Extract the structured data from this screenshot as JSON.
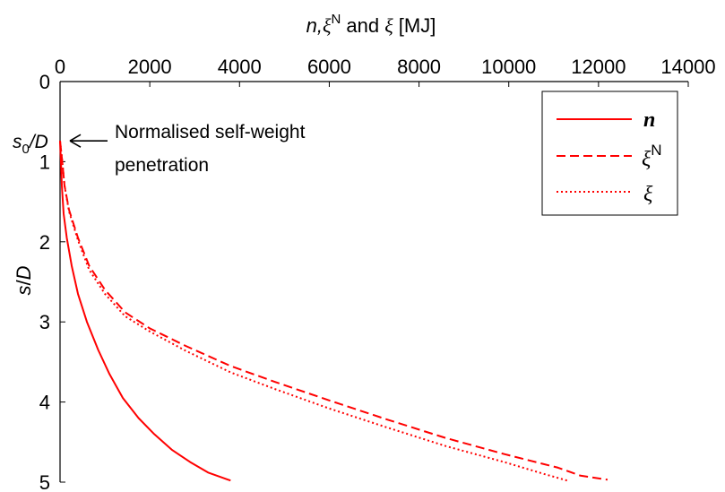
{
  "chart_data": {
    "type": "line",
    "xlabel_parts": {
      "n": "n,",
      "xi": "ξ",
      "sup": "N",
      "and": " and ",
      "xi2": "ξ",
      "unit": " [MJ]"
    },
    "ylabel_parts": {
      "s": "s",
      "slash": "/",
      "D": "D"
    },
    "xlim": [
      0,
      14000
    ],
    "ylim": [
      0,
      5
    ],
    "y_reversed": true,
    "x_axis_position": "top",
    "grid": false,
    "x_ticks": [
      0,
      2000,
      4000,
      6000,
      8000,
      10000,
      12000,
      14000
    ],
    "y_ticks": [
      0,
      1,
      2,
      3,
      4,
      5
    ],
    "legend_position": "top-right",
    "legend": [
      {
        "label": "n",
        "sup": "",
        "style": "solid"
      },
      {
        "label": "ξ",
        "sup": "N",
        "style": "dashed"
      },
      {
        "label": "ξ",
        "sup": "",
        "style": "dotted"
      }
    ],
    "series": [
      {
        "name": "n",
        "color": "#ff0000",
        "style": "solid",
        "x": [
          0,
          20,
          40,
          80,
          150,
          260,
          400,
          600,
          850,
          1100,
          1400,
          1750,
          2100,
          2500,
          2900,
          3300,
          3800
        ],
        "y": [
          0.74,
          1.0,
          1.3,
          1.65,
          1.95,
          2.3,
          2.65,
          3.0,
          3.35,
          3.65,
          3.95,
          4.2,
          4.4,
          4.6,
          4.75,
          4.88,
          4.98
        ]
      },
      {
        "name": "ξN",
        "color": "#ff0000",
        "style": "dashed",
        "x": [
          0,
          50,
          100,
          200,
          400,
          650,
          1000,
          1450,
          2000,
          2800,
          3800,
          4800,
          6000,
          7300,
          8600,
          9900,
          11100,
          11600,
          12200
        ],
        "y": [
          0.74,
          1.0,
          1.3,
          1.6,
          1.95,
          2.3,
          2.6,
          2.88,
          3.08,
          3.3,
          3.55,
          3.75,
          3.98,
          4.22,
          4.45,
          4.65,
          4.82,
          4.92,
          4.97
        ]
      },
      {
        "name": "ξ",
        "color": "#ff0000",
        "style": "dotted",
        "x": [
          0,
          50,
          100,
          200,
          400,
          650,
          1000,
          1450,
          2000,
          2800,
          3800,
          4800,
          6000,
          7300,
          8600,
          9900,
          10800,
          11300
        ],
        "y": [
          0.74,
          1.0,
          1.3,
          1.62,
          1.98,
          2.35,
          2.65,
          2.93,
          3.12,
          3.36,
          3.63,
          3.84,
          4.08,
          4.32,
          4.55,
          4.75,
          4.9,
          4.98
        ]
      }
    ],
    "annotation": {
      "marker_parts": {
        "s": "s",
        "sub": "0",
        "rest": "/D"
      },
      "marker_y": 0.74,
      "text_lines": [
        "Normalised self-weight",
        "penetration"
      ]
    }
  }
}
